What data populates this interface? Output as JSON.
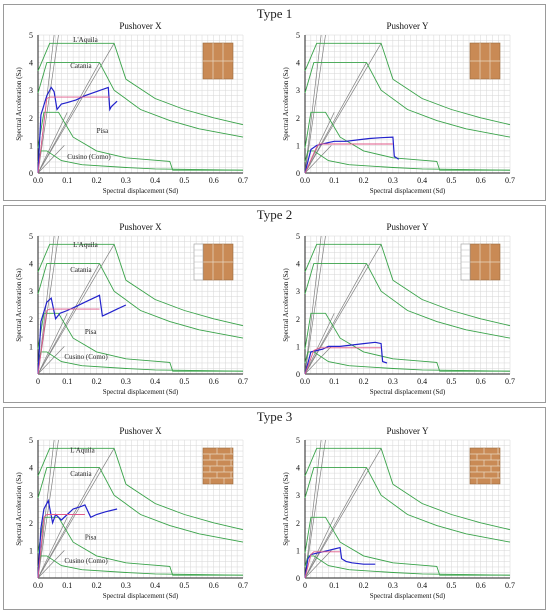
{
  "sections": [
    {
      "title": "Type 1"
    },
    {
      "title": "Type 2"
    },
    {
      "title": "Type 3"
    }
  ],
  "colors": {
    "grid": "#d6d6d6",
    "spectra": "#3aa34a",
    "lines": "#808080",
    "capacity": "#2222cc",
    "bilinear": "#e05a8a",
    "wall": "#c98a55",
    "mortar": "#e8d8c4"
  },
  "chart_data": [
    {
      "type": "line",
      "title": "Pushover X",
      "section": "Type 1",
      "xlabel": "Spectral displacement (Sd)",
      "ylabel": "Spectral Acceleration (Sa)",
      "xlim": [
        0,
        0.7
      ],
      "ylim": [
        0,
        5
      ],
      "xticks": [
        "0.0",
        "0.1",
        "0.2",
        "0.3",
        "0.4",
        "0.5",
        "0.6",
        "0.7"
      ],
      "yticks": [
        "0",
        "1",
        "2",
        "3",
        "4",
        "5"
      ],
      "grid": true,
      "icon": "wall-x",
      "annotations": [
        {
          "text": "L'Aquila",
          "x": 0.12,
          "y": 4.75
        },
        {
          "text": "Catania",
          "x": 0.11,
          "y": 3.8
        },
        {
          "text": "Pisa",
          "x": 0.2,
          "y": 1.45
        },
        {
          "text": "Cusino (Como)",
          "x": 0.1,
          "y": 0.5
        }
      ],
      "series": [
        {
          "x": [
            0,
            0.01,
            0.03,
            0.045,
            0.055,
            0.065,
            0.08,
            0.1,
            0.13,
            0.16,
            0.2,
            0.24,
            0.245,
            0.25,
            0.27
          ],
          "y": [
            0,
            2.1,
            2.8,
            3.1,
            2.95,
            2.3,
            2.5,
            2.55,
            2.65,
            2.8,
            2.95,
            3.1,
            2.3,
            2.4,
            2.6
          ]
        },
        {
          "x": [
            0,
            0.03,
            0.04,
            0.245
          ],
          "y": [
            0,
            2.7,
            2.75,
            2.75
          ]
        }
      ]
    },
    {
      "type": "line",
      "title": "Pushover Y",
      "section": "Type 1",
      "xlabel": "Spectral displacement (Sd)",
      "ylabel": "Spectral Acceleration (Sa)",
      "xlim": [
        0,
        0.7
      ],
      "ylim": [
        0,
        5
      ],
      "xticks": [
        "0.0",
        "0.1",
        "0.2",
        "0.3",
        "0.4",
        "0.5",
        "0.6",
        "0.7"
      ],
      "yticks": [
        "0",
        "1",
        "2",
        "3",
        "4",
        "5"
      ],
      "grid": true,
      "icon": "wall-y",
      "annotations": [],
      "series": [
        {
          "x": [
            0,
            0.02,
            0.04,
            0.06,
            0.08,
            0.1,
            0.14,
            0.18,
            0.22,
            0.26,
            0.3,
            0.305,
            0.32
          ],
          "y": [
            0,
            0.85,
            1.0,
            1.05,
            1.1,
            1.15,
            1.15,
            1.2,
            1.25,
            1.28,
            1.3,
            0.6,
            0.5
          ]
        },
        {
          "x": [
            0,
            0.04,
            0.05,
            0.3
          ],
          "y": [
            0,
            0.95,
            1.05,
            1.05
          ]
        }
      ]
    },
    {
      "type": "line",
      "title": "Pushover X",
      "section": "Type 2",
      "xlabel": "Spectral displacement (Sd)",
      "ylabel": "Spectral Acceleration (Sa)",
      "xlim": [
        0,
        0.7
      ],
      "ylim": [
        0,
        5
      ],
      "xticks": [
        "0",
        "0.1",
        "0.2",
        "0.3",
        "0.4",
        "0.5",
        "0.6",
        "0.7"
      ],
      "yticks": [
        "",
        "1",
        "2",
        "3",
        "4",
        "5"
      ],
      "grid": true,
      "icon": "wall-x-opening",
      "annotations": [
        {
          "text": "L'Aquila",
          "x": 0.12,
          "y": 4.6
        },
        {
          "text": "Catania",
          "x": 0.11,
          "y": 3.7
        },
        {
          "text": "Pisa",
          "x": 0.16,
          "y": 1.45
        },
        {
          "text": "Cusino (Como)",
          "x": 0.09,
          "y": 0.55
        }
      ],
      "series": [
        {
          "x": [
            0,
            0.01,
            0.03,
            0.045,
            0.06,
            0.075,
            0.1,
            0.13,
            0.16,
            0.19,
            0.21,
            0.22,
            0.24,
            0.27,
            0.3
          ],
          "y": [
            0,
            1.9,
            2.6,
            2.75,
            2.0,
            2.2,
            2.3,
            2.45,
            2.6,
            2.75,
            2.85,
            2.1,
            2.2,
            2.35,
            2.5
          ]
        },
        {
          "x": [
            0,
            0.03,
            0.04,
            0.21
          ],
          "y": [
            0,
            2.3,
            2.35,
            2.35
          ]
        }
      ]
    },
    {
      "type": "line",
      "title": "Pushover Y",
      "section": "Type 2",
      "xlabel": "Spectral displacement (Sd)",
      "ylabel": "Spectral Acceleration (Sa)",
      "xlim": [
        0,
        0.7
      ],
      "ylim": [
        0,
        5
      ],
      "xticks": [
        "0.0",
        "0.1",
        "0.2",
        "0.3",
        "0.4",
        "0.5",
        "0.6",
        "0.7"
      ],
      "yticks": [
        "0",
        "1",
        "2",
        "3",
        "4",
        "5"
      ],
      "grid": true,
      "icon": "wall-y-opening",
      "annotations": [],
      "series": [
        {
          "x": [
            0,
            0.02,
            0.04,
            0.06,
            0.08,
            0.12,
            0.16,
            0.2,
            0.24,
            0.26,
            0.265,
            0.28
          ],
          "y": [
            0,
            0.8,
            0.85,
            0.9,
            1.0,
            1.0,
            1.05,
            1.1,
            1.15,
            1.1,
            0.45,
            0.4
          ]
        },
        {
          "x": [
            0,
            0.03,
            0.05,
            0.26
          ],
          "y": [
            0,
            0.85,
            0.95,
            0.95
          ]
        }
      ]
    },
    {
      "type": "line",
      "title": "Pushover X",
      "section": "Type 3",
      "xlabel": "Spectral displacement (Sd)",
      "ylabel": "Spectral Acceleration (Sa)",
      "xlim": [
        0,
        0.7
      ],
      "ylim": [
        0,
        5
      ],
      "xticks": [
        "0.0",
        "0.1",
        "0.2",
        "0.3",
        "0.4",
        "0.5",
        "0.6",
        "0.7"
      ],
      "yticks": [
        "",
        "1",
        "2",
        "3",
        "4",
        "5"
      ],
      "grid": true,
      "icon": "brick-x",
      "annotations": [
        {
          "text": "L'Aquila",
          "x": 0.11,
          "y": 4.55
        },
        {
          "text": "Catania",
          "x": 0.11,
          "y": 3.7
        },
        {
          "text": "Pisa",
          "x": 0.16,
          "y": 1.4
        },
        {
          "text": "Cusino (Como)",
          "x": 0.09,
          "y": 0.55
        }
      ],
      "series": [
        {
          "x": [
            0,
            0.01,
            0.02,
            0.035,
            0.05,
            0.06,
            0.08,
            0.1,
            0.12,
            0.15,
            0.16,
            0.18,
            0.2,
            0.23,
            0.27
          ],
          "y": [
            0,
            1.8,
            2.5,
            2.8,
            2.0,
            2.3,
            2.1,
            2.3,
            2.5,
            2.6,
            2.65,
            2.2,
            2.3,
            2.4,
            2.5
          ]
        },
        {
          "x": [
            0,
            0.02,
            0.03,
            0.16
          ],
          "y": [
            0,
            2.2,
            2.3,
            2.3
          ]
        }
      ]
    },
    {
      "type": "line",
      "title": "Pushover Y",
      "section": "Type 3",
      "xlabel": "Spectral displacement (Sd)",
      "ylabel": "Spectral Acceleration (Sa)",
      "xlim": [
        0,
        0.7
      ],
      "ylim": [
        0,
        5
      ],
      "xticks": [
        "0",
        "0.1",
        "0.2",
        "0.3",
        "0.4",
        "0.5",
        "0.6",
        "0.7"
      ],
      "yticks": [
        "0",
        "1",
        "2",
        "3",
        "4",
        "5"
      ],
      "grid": true,
      "icon": "brick-y",
      "annotations": [],
      "series": [
        {
          "x": [
            0,
            0.01,
            0.02,
            0.04,
            0.06,
            0.08,
            0.1,
            0.12,
            0.125,
            0.14,
            0.16,
            0.2,
            0.24
          ],
          "y": [
            0,
            0.7,
            0.85,
            0.9,
            0.95,
            1.0,
            1.05,
            1.1,
            0.7,
            0.6,
            0.55,
            0.5,
            0.5
          ]
        },
        {
          "x": [
            0,
            0.02,
            0.03,
            0.12
          ],
          "y": [
            0,
            0.85,
            0.95,
            0.95
          ]
        }
      ]
    }
  ]
}
